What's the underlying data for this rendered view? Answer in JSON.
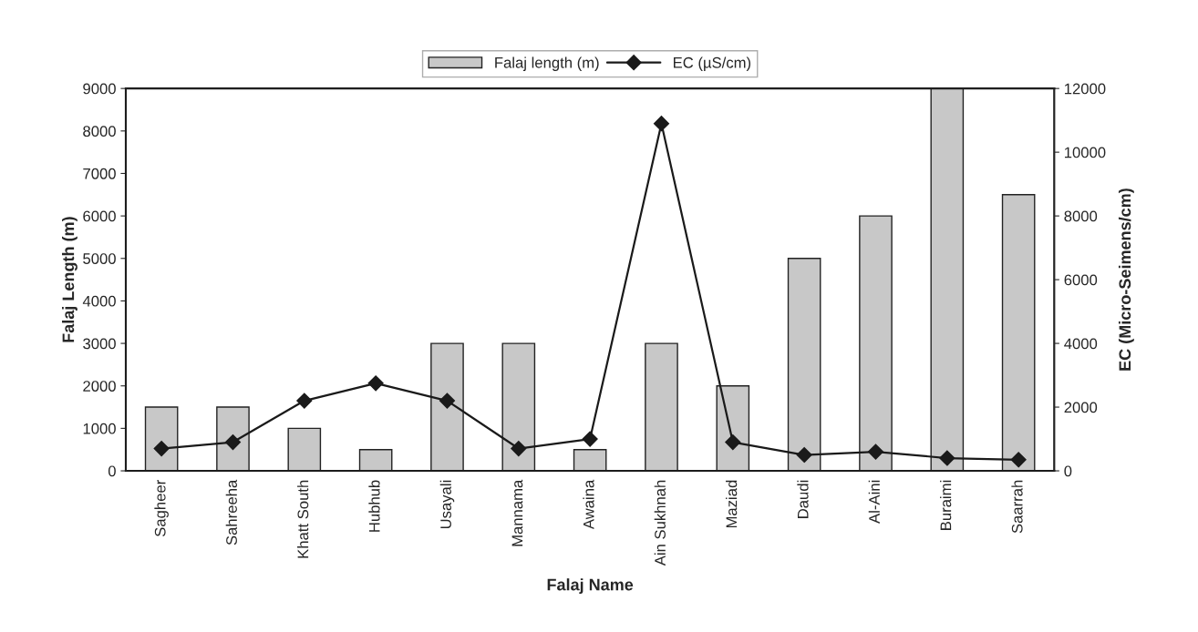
{
  "chart_data": {
    "type": "bar",
    "xlabel": "Falaj Name",
    "ylabel": "Falaj Length (m)",
    "y2label": "EC (Micro-Seimens/cm)",
    "categories": [
      "Sagheer",
      "Sahreeha",
      "Khatt South",
      "Hubhub",
      "Usayali",
      "Mannama",
      "Awaina",
      "Ain Sukhnah",
      "Maziad",
      "Daudi",
      "Al-Aini",
      "Buraimi",
      "Saarrah"
    ],
    "series": [
      {
        "name": "Falaj length (m)",
        "color": "#c8c8c8",
        "values": [
          1500,
          1500,
          1000,
          500,
          3000,
          3000,
          500,
          3000,
          2000,
          5000,
          6000,
          9000,
          6500
        ]
      },
      {
        "name": "EC (µS/cm)",
        "type": "line",
        "axis": "y2",
        "color": "#1a1a1a",
        "marker": "diamond",
        "values": [
          700,
          900,
          2200,
          2750,
          2200,
          700,
          1000,
          10900,
          900,
          500,
          600,
          400,
          350
        ]
      }
    ],
    "ylim": [
      0,
      9000
    ],
    "yticks": [
      0,
      1000,
      2000,
      3000,
      4000,
      5000,
      6000,
      7000,
      8000,
      9000
    ],
    "y2lim": [
      0,
      12000
    ],
    "y2ticks": [
      0,
      2000,
      4000,
      6000,
      8000,
      10000,
      12000
    ],
    "legend": "top",
    "grid": false
  }
}
